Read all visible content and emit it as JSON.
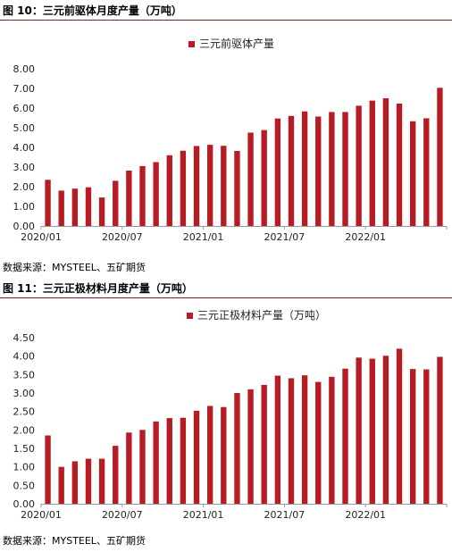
{
  "colors": {
    "bar": "#B71C24",
    "rule": "#8c1d25",
    "axis": "#9a9a9a"
  },
  "chart_data": [
    {
      "type": "bar",
      "title": "图 10：三元前驱体月度产量（万吨）",
      "source": "数据来源：MYSTEEL、五矿期货",
      "series": [
        {
          "name": "三元前驱体产量",
          "values": [
            2.35,
            1.8,
            1.9,
            1.97,
            1.45,
            2.3,
            2.82,
            3.05,
            3.25,
            3.6,
            3.83,
            4.07,
            4.13,
            4.08,
            3.82,
            4.75,
            4.88,
            5.47,
            5.6,
            5.83,
            5.57,
            5.8,
            5.8,
            6.12,
            6.38,
            6.5,
            6.23,
            5.33,
            5.48,
            7.03
          ]
        }
      ],
      "x_tick_labels": [
        "2020/01",
        "2020/07",
        "2021/01",
        "2021/07",
        "2022/01"
      ],
      "y_tick_labels": [
        "0.00",
        "1.00",
        "2.00",
        "3.00",
        "4.00",
        "5.00",
        "6.00",
        "7.00",
        "8.00"
      ],
      "ylim": [
        0,
        8
      ],
      "legend_position": "top-center",
      "grid": false
    },
    {
      "type": "bar",
      "title": "图 11：三元正极材料月度产量（万吨）",
      "source": "数据来源：MYSTEEL、五矿期货",
      "series": [
        {
          "name": "三元正极材料产量（万吨）",
          "values": [
            1.85,
            1.0,
            1.15,
            1.22,
            1.22,
            1.57,
            1.93,
            2.0,
            2.23,
            2.32,
            2.33,
            2.52,
            2.65,
            2.62,
            3.0,
            3.1,
            3.22,
            3.47,
            3.4,
            3.48,
            3.3,
            3.44,
            3.66,
            3.96,
            3.93,
            4.01,
            4.2,
            3.65,
            3.64,
            3.98
          ]
        }
      ],
      "x_tick_labels": [
        "2020/01",
        "2020/07",
        "2021/01",
        "2021/07",
        "2022/01"
      ],
      "y_tick_labels": [
        "0.00",
        "0.50",
        "1.00",
        "1.50",
        "2.00",
        "2.50",
        "3.00",
        "3.50",
        "4.00",
        "4.50"
      ],
      "ylim": [
        0,
        4.5
      ],
      "legend_position": "top-center",
      "grid": false
    }
  ]
}
